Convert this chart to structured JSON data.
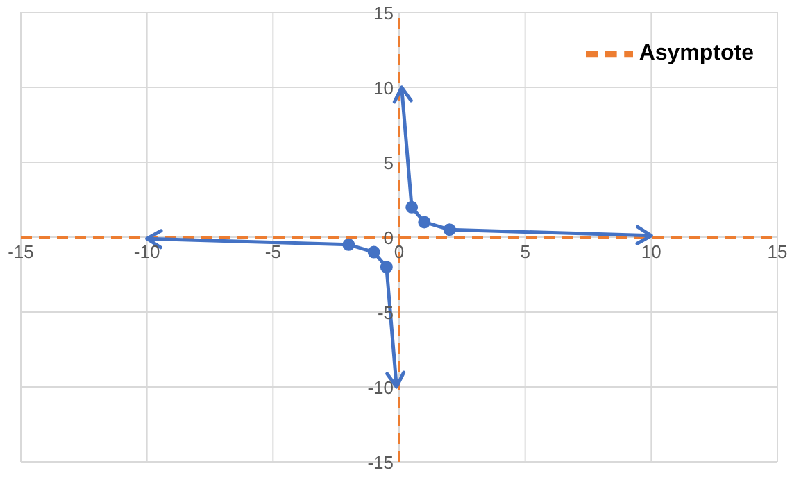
{
  "chart_data": {
    "type": "line",
    "series": [
      {
        "name": "Asymptote",
        "color": "#ed7d31",
        "line_style": "dashed",
        "marker": "none",
        "x": [
          0,
          0
        ],
        "values": [
          -15,
          15
        ]
      },
      {
        "color": "#ed7d31",
        "line_style": "dashed",
        "marker": "none",
        "x": [
          -15,
          15
        ],
        "values": [
          0,
          0
        ]
      },
      {
        "color": "#4472c4",
        "x": [
          -10,
          -2,
          -1,
          -0.5,
          -0.1
        ],
        "values": [
          -0.1,
          -0.5,
          -1,
          -2,
          -10
        ]
      },
      {
        "color": "#4472c4",
        "x": [
          0.1,
          0.5,
          1,
          2,
          10
        ],
        "values": [
          10,
          2,
          1,
          0.5,
          0.1
        ]
      }
    ],
    "xlim": [
      -15,
      15
    ],
    "xticks": [
      -15,
      -10,
      -5,
      0,
      5,
      10,
      15
    ],
    "ylim": [
      -15,
      15
    ],
    "yticks": [
      -15,
      -10,
      -5,
      0,
      5,
      10,
      15
    ],
    "grid": true,
    "marker": "circle",
    "line_style": "solid",
    "legend": "top right"
  }
}
